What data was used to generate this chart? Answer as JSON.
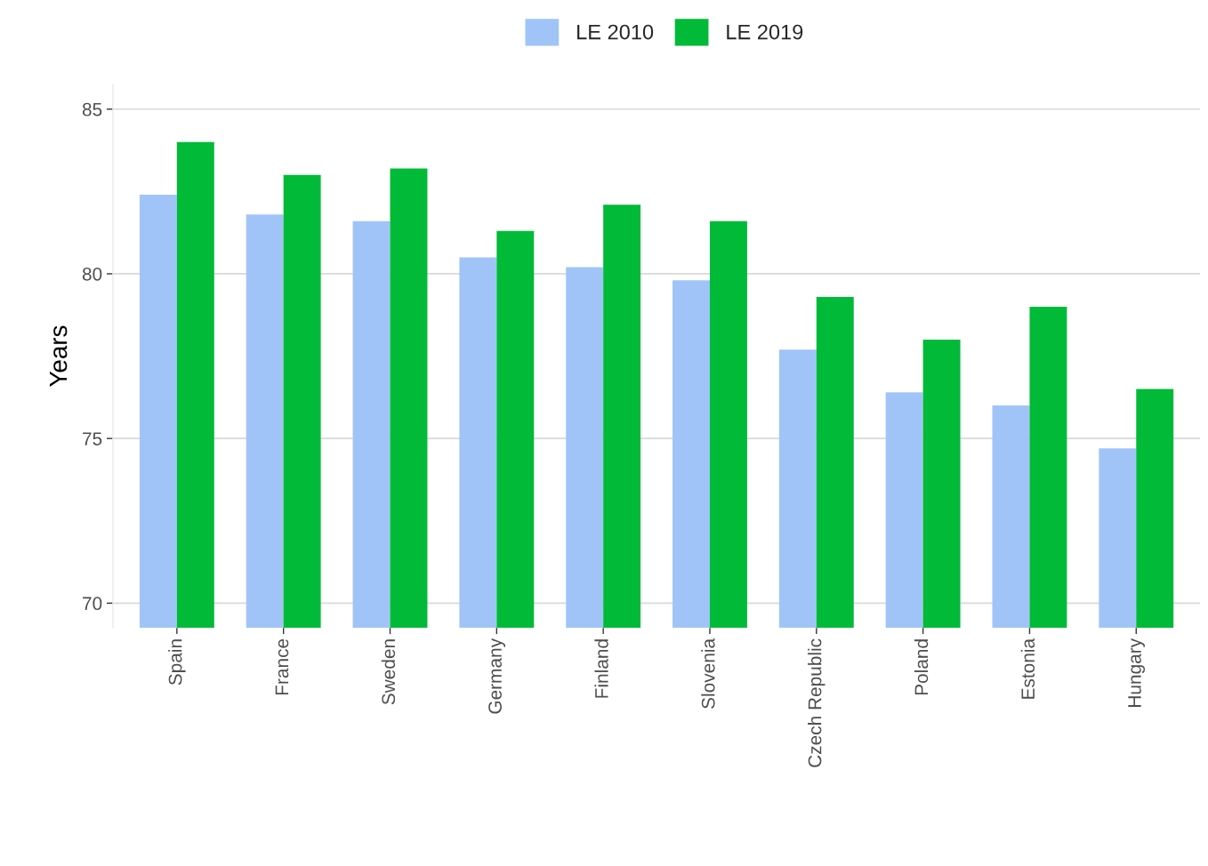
{
  "chart_data": {
    "type": "bar",
    "ylabel": "Years",
    "categories": [
      "Spain",
      "France",
      "Sweden",
      "Germany",
      "Finland",
      "Slovenia",
      "Czech Republic",
      "Poland",
      "Estonia",
      "Hungary"
    ],
    "series": [
      {
        "name": "LE 2010",
        "color": "#a0c4f8",
        "values": [
          82.4,
          81.8,
          81.6,
          80.5,
          80.2,
          79.8,
          77.7,
          76.4,
          76.0,
          74.7
        ]
      },
      {
        "name": "LE 2019",
        "color": "#00ba38",
        "values": [
          84.0,
          83.0,
          83.2,
          81.3,
          82.1,
          81.6,
          79.3,
          78.0,
          79.0,
          76.5
        ]
      }
    ],
    "ylim": [
      69.25,
      85.75
    ],
    "yticks": [
      70,
      75,
      80,
      85
    ],
    "grid": "y",
    "legend": "top"
  }
}
